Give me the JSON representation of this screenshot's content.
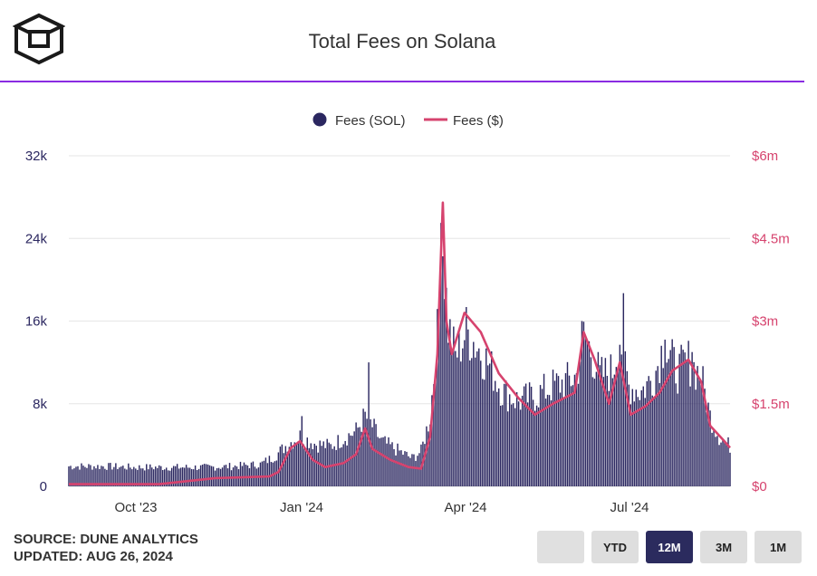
{
  "header": {
    "title": "Total Fees on Solana",
    "logo_icon": "cube-logo-icon"
  },
  "footer": {
    "source": "SOURCE: DUNE ANALYTICS",
    "updated": "UPDATED: AUG 26, 2024"
  },
  "range_buttons": [
    {
      "label": "",
      "active": false
    },
    {
      "label": "YTD",
      "active": false
    },
    {
      "label": "12M",
      "active": true
    },
    {
      "label": "3M",
      "active": false
    },
    {
      "label": "1M",
      "active": false
    }
  ],
  "chart_data": {
    "type": "bar+line",
    "title": "Total Fees on Solana",
    "legend": [
      {
        "name": "Fees (SOL)",
        "kind": "bar",
        "color": "#2b2760"
      },
      {
        "name": "Fees ($)",
        "kind": "line",
        "color": "#d6436e"
      }
    ],
    "legend_position": "top-center",
    "grid": true,
    "x_ticks": [
      "Oct '23",
      "Jan '24",
      "Apr '24",
      "Jul '24"
    ],
    "y_left": {
      "ticks": [
        "0",
        "8k",
        "16k",
        "24k",
        "32k"
      ],
      "range": [
        0,
        32000
      ]
    },
    "y_right": {
      "ticks": [
        "$0",
        "$1.5m",
        "$3m",
        "$4.5m",
        "$6m"
      ],
      "range": [
        0,
        6000000
      ]
    },
    "date_range": [
      "2023-08-26",
      "2024-08-26"
    ],
    "sol_keypoints": [
      [
        "2023-08-26",
        2000
      ],
      [
        "2023-09-15",
        2000
      ],
      [
        "2023-10-01",
        1900
      ],
      [
        "2023-10-20",
        1900
      ],
      [
        "2023-11-10",
        1900
      ],
      [
        "2023-11-25",
        2000
      ],
      [
        "2023-12-10",
        2200
      ],
      [
        "2023-12-18",
        3000
      ],
      [
        "2023-12-25",
        4200
      ],
      [
        "2024-01-01",
        5000
      ],
      [
        "2024-01-10",
        4200
      ],
      [
        "2024-01-18",
        4000
      ],
      [
        "2024-01-25",
        4800
      ],
      [
        "2024-02-01",
        5500
      ],
      [
        "2024-02-06",
        7000
      ],
      [
        "2024-02-10",
        6000
      ],
      [
        "2024-02-15",
        4500
      ],
      [
        "2024-02-25",
        3500
      ],
      [
        "2024-03-03",
        2800
      ],
      [
        "2024-03-08",
        3500
      ],
      [
        "2024-03-13",
        7000
      ],
      [
        "2024-03-17",
        15000
      ],
      [
        "2024-03-20",
        24000
      ],
      [
        "2024-03-23",
        16000
      ],
      [
        "2024-03-27",
        13000
      ],
      [
        "2024-04-02",
        15500
      ],
      [
        "2024-04-08",
        14000
      ],
      [
        "2024-04-15",
        12000
      ],
      [
        "2024-04-22",
        9500
      ],
      [
        "2024-05-01",
        8500
      ],
      [
        "2024-05-10",
        9000
      ],
      [
        "2024-05-20",
        10000
      ],
      [
        "2024-05-28",
        10500
      ],
      [
        "2024-06-02",
        11000
      ],
      [
        "2024-06-06",
        15000
      ],
      [
        "2024-06-10",
        13500
      ],
      [
        "2024-06-15",
        11000
      ],
      [
        "2024-06-22",
        11500
      ],
      [
        "2024-06-26",
        15000
      ],
      [
        "2024-07-01",
        10000
      ],
      [
        "2024-07-08",
        9500
      ],
      [
        "2024-07-15",
        11000
      ],
      [
        "2024-07-20",
        14000
      ],
      [
        "2024-07-28",
        11500
      ],
      [
        "2024-08-03",
        12500
      ],
      [
        "2024-08-10",
        11000
      ],
      [
        "2024-08-15",
        7000
      ],
      [
        "2024-08-20",
        5000
      ],
      [
        "2024-08-26",
        4000
      ]
    ],
    "sol_spikes": [
      [
        "2024-01-02",
        6800
      ],
      [
        "2024-02-08",
        12000
      ],
      [
        "2024-03-19",
        25500
      ],
      [
        "2024-06-05",
        16000
      ],
      [
        "2024-06-28",
        18700
      ],
      [
        "2024-07-21",
        14200
      ],
      [
        "2024-08-05",
        13000
      ]
    ],
    "usd_keypoints": [
      [
        "2023-08-26",
        40000
      ],
      [
        "2023-10-15",
        40000
      ],
      [
        "2023-11-15",
        150000
      ],
      [
        "2023-12-15",
        180000
      ],
      [
        "2023-12-20",
        260000
      ],
      [
        "2023-12-27",
        700000
      ],
      [
        "2024-01-01",
        820000
      ],
      [
        "2024-01-08",
        480000
      ],
      [
        "2024-01-15",
        350000
      ],
      [
        "2024-01-25",
        420000
      ],
      [
        "2024-02-01",
        580000
      ],
      [
        "2024-02-06",
        1050000
      ],
      [
        "2024-02-10",
        680000
      ],
      [
        "2024-02-20",
        480000
      ],
      [
        "2024-03-01",
        350000
      ],
      [
        "2024-03-08",
        320000
      ],
      [
        "2024-03-13",
        900000
      ],
      [
        "2024-03-17",
        2400000
      ],
      [
        "2024-03-20",
        5150000
      ],
      [
        "2024-03-22",
        3000000
      ],
      [
        "2024-03-25",
        2400000
      ],
      [
        "2024-04-01",
        3150000
      ],
      [
        "2024-04-10",
        2800000
      ],
      [
        "2024-04-20",
        2050000
      ],
      [
        "2024-05-01",
        1600000
      ],
      [
        "2024-05-10",
        1300000
      ],
      [
        "2024-05-20",
        1500000
      ],
      [
        "2024-06-01",
        1700000
      ],
      [
        "2024-06-06",
        2800000
      ],
      [
        "2024-06-12",
        2300000
      ],
      [
        "2024-06-20",
        1500000
      ],
      [
        "2024-06-26",
        2250000
      ],
      [
        "2024-07-02",
        1300000
      ],
      [
        "2024-07-10",
        1450000
      ],
      [
        "2024-07-18",
        1700000
      ],
      [
        "2024-07-25",
        2100000
      ],
      [
        "2024-08-03",
        2300000
      ],
      [
        "2024-08-10",
        1900000
      ],
      [
        "2024-08-15",
        1100000
      ],
      [
        "2024-08-22",
        850000
      ],
      [
        "2024-08-26",
        700000
      ]
    ]
  }
}
